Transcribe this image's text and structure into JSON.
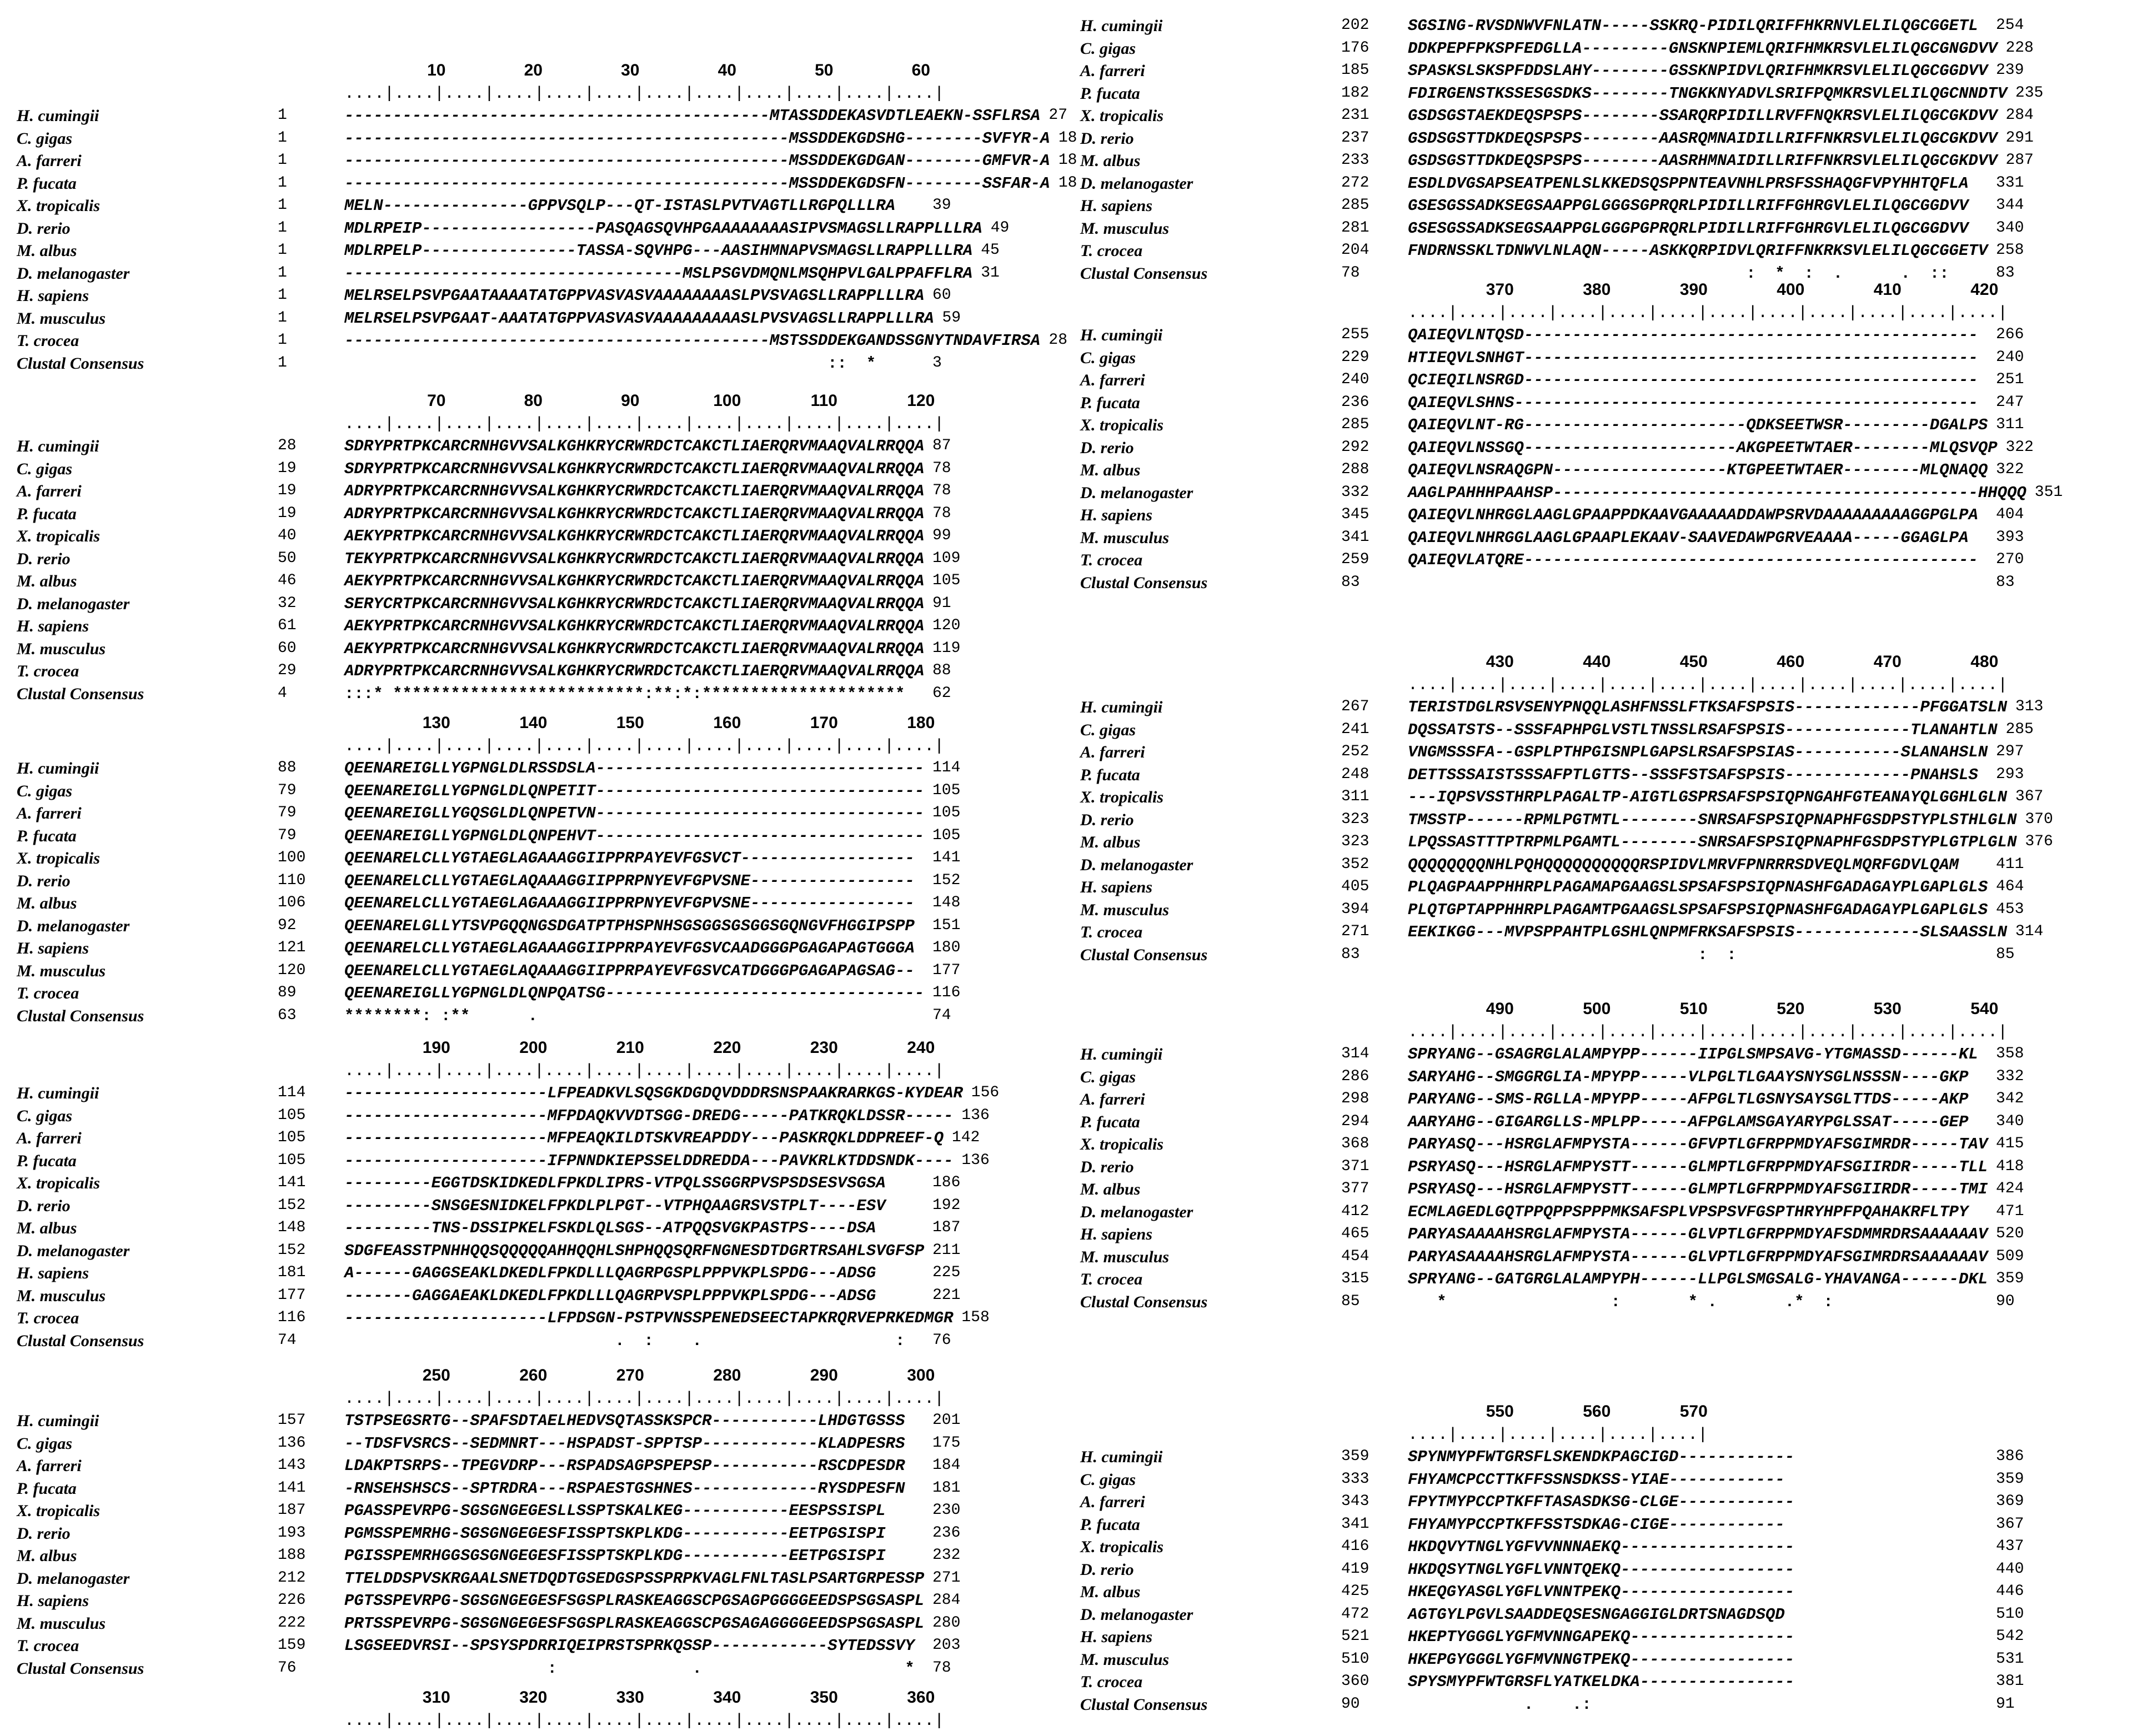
{
  "species": [
    "H. cumingii",
    "C. gigas",
    "A. farreri",
    "P. fucata",
    "X. tropicalis",
    "D. rerio",
    "M. albus",
    "D. melanogaster",
    "H. sapiens",
    "M. musculus",
    "T. crocea"
  ],
  "consensus_label": "Clustal Consensus",
  "blocks": [
    {
      "ruler": [
        "10",
        "20",
        "30",
        "40",
        "50",
        "60"
      ],
      "rows": [
        [
          "1",
          "--------------------------------------------MTASSDDEKASVDTLEAEKN-SSFLRSA",
          "27"
        ],
        [
          "1",
          "----------------------------------------------MSSDDEKGDSHG--------SVFYR-A",
          "18"
        ],
        [
          "1",
          "----------------------------------------------MSSDDEKGDGAN--------GMFVR-A",
          "18"
        ],
        [
          "1",
          "----------------------------------------------MSSDDEKGDSFN--------SSFAR-A",
          "18"
        ],
        [
          "1",
          "MELN---------------GPPVSQLP---QT-ISTASLPVTVAGTLLRGPQLLLRA",
          "39"
        ],
        [
          "1",
          "MDLRPEIP------------------PASQAGSQVHPGAAAAAAAASIPVSMAGSLLRAPPLLLRA",
          "49"
        ],
        [
          "1",
          "MDLRPELP----------------TASSA-SQVHPG---AASIHMNAPVSMAGSLLRAPPLLLRA",
          "45"
        ],
        [
          "1",
          "-----------------------------------MSLPSGVDMQNLMSQHPVLGALPPAFFLRA",
          "31"
        ],
        [
          "1",
          "MELRSELPSVPGAATAAAATATGPPVASVASVAAAAAAAASLPVSVAGSLLRAPPLLLRA",
          "60"
        ],
        [
          "1",
          "MELRSELPSVPGAAT-AAATATGPPVASVASVAAAAAAAAASLPVSVAGSLLRAPPLLLRA",
          "59"
        ],
        [
          "1",
          "--------------------------------------------MSTSSDDEKGANDSSGNYTNDAVFIRSA",
          "28"
        ]
      ],
      "consensus": [
        "1",
        "                                                  ::  *",
        "3"
      ]
    },
    {
      "ruler": [
        "70",
        "80",
        "90",
        "100",
        "110",
        "120"
      ],
      "rows": [
        [
          "28",
          "SDRYPRTPKCARCRNHGVVSALKGHKRYCRWRDCTCAKCTLIAERQRVMAAQVALRRQQA",
          "87"
        ],
        [
          "19",
          "SDRYPRTPKCARCRNHGVVSALKGHKRYCRWRDCTCAKCTLIAERQRVMAAQVALRRQQA",
          "78"
        ],
        [
          "19",
          "ADRYPRTPKCARCRNHGVVSALKGHKRYCRWRDCTCAKCTLIAERQRVMAAQVALRRQQA",
          "78"
        ],
        [
          "19",
          "ADRYPRTPKCARCRNHGVVSALKGHKRYCRWRDCTCAKCTLIAERQRVMAAQVALRRQQA",
          "78"
        ],
        [
          "40",
          "AEKYPRTPKCARCRNHGVVSALKGHKRYCRWRDCTCAKCTLIAERQRVMAAQVALRRQQA",
          "99"
        ],
        [
          "50",
          "TEKYPRTPKCARCRNHGVVSALKGHKRYCRWRDCTCAKCTLIAERQRVMAAQVALRRQQA",
          "109"
        ],
        [
          "46",
          "AEKYPRTPKCARCRNHGVVSALKGHKRYCRWRDCTCAKCTLIAERQRVMAAQVALRRQQA",
          "105"
        ],
        [
          "32",
          "SERYCRTPKCARCRNHGVVSALKGHKRYCRWRDCTCAKCTLIAERQRVMAAQVALRRQQA",
          "91"
        ],
        [
          "61",
          "AEKYPRTPKCARCRNHGVVSALKGHKRYCRWRDCTCAKCTLIAERQRVMAAQVALRRQQA",
          "120"
        ],
        [
          "60",
          "AEKYPRTPKCARCRNHGVVSALKGHKRYCRWRDCTCAKCTLIAERQRVMAAQVALRRQQA",
          "119"
        ],
        [
          "29",
          "ADRYPRTPKCARCRNHGVVSALKGHKRYCRWRDCTCAKCTLIAERQRVMAAQVALRRQQA",
          "88"
        ]
      ],
      "consensus": [
        "4",
        ":::* **************************:**:*:*********************",
        "62"
      ]
    },
    {
      "ruler": [
        "130",
        "140",
        "150",
        "160",
        "170",
        "180"
      ],
      "rows": [
        [
          "88",
          "QEENAREIGLLYGPNGLDLRSSDSLA----------------------------------",
          "114"
        ],
        [
          "79",
          "QEENAREIGLLYGPNGLDLQNPETIT----------------------------------",
          "105"
        ],
        [
          "79",
          "QEENAREIGLLYGQSGLDLQNPETVN----------------------------------",
          "105"
        ],
        [
          "79",
          "QEENAREIGLLYGPNGLDLQNPEHVT----------------------------------",
          "105"
        ],
        [
          "100",
          "QEENARELCLLYGTAEGLAGAAAGGIIPPRPAYEVFGSVCT------------------",
          "141"
        ],
        [
          "110",
          "QEENARELCLLYGTAEGLAQAAAGGIIPPRPNYEVFGPVSNE-----------------",
          "152"
        ],
        [
          "106",
          "QEENARELCLLYGTAEGLAGAAAGGIIPPRPNYEVFGPVSNE-----------------",
          "148"
        ],
        [
          "92",
          "QEENARELGLLYTSVPGQQNGSDGATPTPHSPNHSGSGGSGSGGSGQNGVFHGGIPSPP",
          "151"
        ],
        [
          "121",
          "QEENARELCLLYGTAEGLAGAAAGGIIPPRPAYEVFGSVCAADGGGPGAGAPAGTGGGA",
          "180"
        ],
        [
          "120",
          "QEENARELCLLYGTAEGLAQAAAGGIIPPRPAYEVFGSVCATDGGGPGAGAPAGSAG--",
          "177"
        ],
        [
          "89",
          "QEENAREIGLLYGPNGLDLQNPQATSG---------------------------------",
          "116"
        ]
      ],
      "consensus": [
        "63",
        "********: :**      .",
        "74"
      ]
    },
    {
      "ruler": [
        "190",
        "200",
        "210",
        "220",
        "230",
        "240"
      ],
      "rows": [
        [
          "114",
          "---------------------LFPEADKVLSQSGKDGDQVDDDRSNSPAAKRARKGS-KYDEAR",
          "156"
        ],
        [
          "105",
          "---------------------MFPDAQKVVDTSGG-DREDG-----PATKRQKLDSSR-----",
          "136"
        ],
        [
          "105",
          "---------------------MFPEAQKILDTSKVREAPDDY---PASKRQKLDDPREEF-Q",
          "142"
        ],
        [
          "105",
          "---------------------IFPNNDKIEPSSELDDREDDA---PAVKRLKTDDSNDK----",
          "136"
        ],
        [
          "141",
          "---------EGGTDSKIDKEDLFPKDLIPRS-VTPQLSSGGRPVSPSDSESVSGSA",
          "186"
        ],
        [
          "152",
          "---------SNSGESNIDKELFPKDLPLPGT--VTPHQAAGRSVSTPLT----ESV",
          "192"
        ],
        [
          "148",
          "---------TNS-DSSIPKELFSKDLQLSGS--ATPQQSVGKPASTPS----DSA",
          "187"
        ],
        [
          "152",
          "SDGFEASSTPNHHQQSQQQQQAHHQQHLSHPHQQSQRFNGNESDTDGRTRSAHLSVGFSP",
          "211"
        ],
        [
          "181",
          "A------GAGGSEAKLDKEDLFPKDLLLQAGRPGSPLPPPVKPLSPDG---ADSG",
          "225"
        ],
        [
          "177",
          "-------GAGGAEAKLDKEDLFPKDLLLQAGRPVSPLPPPVKPLSPDG---ADSG",
          "221"
        ],
        [
          "116",
          "---------------------LFPDSGN-PSTPVNSSPENEDSEECTAPKRQRVEPRKEDMGR",
          "158"
        ]
      ],
      "consensus": [
        "74",
        "                            .  :    .                    :",
        "76"
      ]
    },
    {
      "ruler": [
        "250",
        "260",
        "270",
        "280",
        "290",
        "300"
      ],
      "rows": [
        [
          "157",
          "TSTPSEGSRTG--SPAFSDTAELHEDVSQTASSKSPCR-----------LHDGTGSSS",
          "201"
        ],
        [
          "136",
          "--TDSFVSRCS--SEDMNRT---HSPADST-SPPTSP------------KLADPESRS",
          "175"
        ],
        [
          "143",
          "LDAKPTSRPS--TPEGVDRP---RSPADSAGPSPEPSP-----------RSCDPESDR",
          "184"
        ],
        [
          "141",
          "-RNSEHSHSCS--SPTRDRA---RSPAESTGSHNES-------------RYSDPESFN",
          "181"
        ],
        [
          "187",
          "PGASSPEVRPG-SGSGNGEGESLLSSPTSKALKEG-----------EESPSSISPL",
          "230"
        ],
        [
          "193",
          "PGMSSPEMRHG-SGSGNGEGESFISSPTSKPLKDG-----------EETPGSISPI",
          "236"
        ],
        [
          "188",
          "PGISSPEMRHGGSGSGNGEGESFISSPTSKPLKDG-----------EETPGSISPI",
          "232"
        ],
        [
          "212",
          "TTELDDSPVSKRGAALSNETDQDTGSEDGSPSSPRPKVAGLFNLTASLPSARTGRPESSP",
          "271"
        ],
        [
          "226",
          "PGTSSPEVRPG-SGSGNGEGESFSGSPLRASKEAGGSCPGSAGPGGGGEEDSPSGSASPL",
          "284"
        ],
        [
          "222",
          "PRTSSPEVRPG-SGSGNGEGESFSGSPLRASKEAGGSCPGSAGAGGGGEEDSPSGSASPL",
          "280"
        ],
        [
          "159",
          "LSGSEEDVRSI--SPSYSPDRRIQEIPRSTSPRKQSSP------------SYTEDSSVY",
          "203"
        ]
      ],
      "consensus": [
        "76",
        "                     :              .                     *",
        "78"
      ]
    },
    {
      "ruler": [
        "310",
        "320",
        "330",
        "340",
        "350",
        "360"
      ],
      "rows": [],
      "consensus": null
    },
    {
      "ruler": [],
      "rows": [
        [
          "202",
          "SGSING-RVSDNWVFNLATN-----SSKRQ-PIDILQRIFFHKRNVLELILQGCGGETL",
          "254"
        ],
        [
          "176",
          "DDKPEPFPKSPFEDGLLA---------GNSKNPIEMLQRIFHMKRSVLELILQGCGNGDVV",
          "228"
        ],
        [
          "185",
          "SPASKSLSKSPFDDSLAHY--------GSSKNPIDVLQRIFHMKRSVLELILQGCGGDVV",
          "239"
        ],
        [
          "182",
          "FDIRGENSTKSSESGSDKS--------TNGKKNYADVLSRIFPQMKRSVLELILQGCNNDTV",
          "235"
        ],
        [
          "231",
          "GSDSGSTAEKDEQSPSPS--------SSARQRPIDILLRVFFNQKRSVLELILQGCGKDVV",
          "284"
        ],
        [
          "237",
          "GSDSGSTTDKDEQSPSPS--------AASRQMNAIDILLRIFFNKRSVLELILQGCGKDVV",
          "291"
        ],
        [
          "233",
          "GSDSGSTTDKDEQSPSPS--------AASRHMNAIDILLRIFFNKRSVLELILQGCGKDVV",
          "287"
        ],
        [
          "272",
          "ESDLDVGSAPSEATPENLSLKKEDSQSPPNTEAVNHLPRSFSSHAQGFVPYHHTQFLA",
          "331"
        ],
        [
          "285",
          "GSESGSSADKSEGSAAPPGLGGGSGPRQRLPIDILLRIFFGHRGVLELILQGCGGDVV",
          "344"
        ],
        [
          "281",
          "GSESGSSADKSEGSAAPPGLGGGPGPRQRLPIDILLRIFFGHRGVLELILQGCGGDVV",
          "340"
        ],
        [
          "204",
          "FNDRNSSKLTDNWVLNLAQN-----ASKKQRPIDVLQRIFFNKRKSVLELILQGCGGETV",
          "258"
        ]
      ],
      "consensus": [
        "78",
        "                                   :  *  :  .      .  ::",
        "83"
      ]
    },
    {
      "ruler": [
        "370",
        "380",
        "390",
        "400",
        "410",
        "420"
      ],
      "rows": [
        [
          "255",
          "QAIEQVLNTQSD-----------------------------------------------",
          "266"
        ],
        [
          "229",
          "HTIEQVLSNHGT-----------------------------------------------",
          "240"
        ],
        [
          "240",
          "QCIEQILNSRGD-----------------------------------------------",
          "251"
        ],
        [
          "236",
          "QAIEQVLSHNS------------------------------------------------",
          "247"
        ],
        [
          "285",
          "QAIEQVLNT-RG-----------------------QDKSEETWSR---------DGALPS",
          "311"
        ],
        [
          "292",
          "QAIEQVLNSSGQ----------------------AKGPEETWTAER--------MLQSVQP",
          "322"
        ],
        [
          "288",
          "QAIEQVLNSRAQGPN------------------KTGPEETWTAER--------MLQNAQQ",
          "322"
        ],
        [
          "332",
          "AAGLPAHHHPAAHSP--------------------------------------------HHQQQ",
          "351"
        ],
        [
          "345",
          "QAIEQVLNHRGGLAAGLGPAAPPDKAAVGAAAAADDAWPSRVDAAAAAAAAAGGPGLPA",
          "404"
        ],
        [
          "341",
          "QAIEQVLNHRGGLAAGLGPAAPLEKAAV-SAAVEDAWPGRVEAAAA-----GGAGLPA",
          "393"
        ],
        [
          "259",
          "QAIEQVLATQRE-----------------------------------------------",
          "270"
        ]
      ],
      "consensus": [
        "83",
        "",
        "83"
      ]
    },
    {
      "ruler": [
        "430",
        "440",
        "450",
        "460",
        "470",
        "480"
      ],
      "rows": [
        [
          "267",
          "TERISTDGLRSVSENYPNQQLASHFNSSLFTKSAFSPSIS-------------PFGGATSLN",
          "313"
        ],
        [
          "241",
          "DQSSATSTS--SSSFAPHPGLVSTLTNSSLRSAFSPSIS-------------TLANAHTLN",
          "285"
        ],
        [
          "252",
          "VNGMSSSFA--GSPLPTHPGISNPLGAPSLRSAFSPSIAS-----------SLANAHSLN",
          "297"
        ],
        [
          "248",
          "DETTSSSAISTSSSAFPTLGTTS--SSSFSTSAFSPSIS-------------PNAHSLS",
          "293"
        ],
        [
          "311",
          "---IQPSVSSTHRPLPAGALTP-AIGTLGSPRSAFSPSIQPNGAHFGTEANAYQLGGHLGLN",
          "367"
        ],
        [
          "323",
          "TMSSTP------RPMLPGTMTL--------SNRSAFSPSIQPNAPHFGSDPSTYPLSTHLGLN",
          "370"
        ],
        [
          "323",
          "LPQSSASTTTPTRPMLPGAMTL--------SNRSAFSPSIQPNAPHFGSDPSTYPLGTPLGLN",
          "376"
        ],
        [
          "352",
          "QQQQQQQQNHLPQHQQQQQQQQQQRSPIDVLMRVFPNRRRSDVEQLMQRFGDVLQAM",
          "411"
        ],
        [
          "405",
          "PLQAGPAAPPHHRPLPAGAMAPGAAGSLSPSAFSPSIQPNASHFGADAGAYPLGAPLGLS",
          "464"
        ],
        [
          "394",
          "PLQTGPTAPPHHRPLPAGAMTPGAAGSLSPSAFSPSIQPNASHFGADAGAYPLGAPLGLS",
          "453"
        ],
        [
          "271",
          "EEKIKGG---MVPSPPAHTPLGSHLQNPMFRKSAFSPSIS-------------SLSAASSLN",
          "314"
        ]
      ],
      "consensus": [
        "83",
        "                              :  :",
        "85"
      ]
    },
    {
      "ruler": [
        "490",
        "500",
        "510",
        "520",
        "530",
        "540"
      ],
      "rows": [
        [
          "314",
          "SPRYANG--GSAGRGLALAMPYPP------IIPGLSMPSAVG-YTGMASSD------KL",
          "358"
        ],
        [
          "286",
          "SARYAHG--SMGGRGLIA-MPYPP-----VLPGLTLGAAYSNYSGLNSSSN----GKP",
          "332"
        ],
        [
          "298",
          "PARYANG--SMS-RGLLA-MPYPP-----AFPGLTLGSNYSAYSGLTTDS-----AKP",
          "342"
        ],
        [
          "294",
          "AARYAHG--GIGARGLLS-MPLPP-----AFPGLAMSGAYARYPGLSSAT-----GEP",
          "340"
        ],
        [
          "368",
          "PARYASQ---HSRGLAFMPYSTA------GFVPTLGFRPPMDYAFSGIMRDR-----TAV",
          "415"
        ],
        [
          "371",
          "PSRYASQ---HSRGLAFMPYSTT------GLMPTLGFRPPMDYAFSGIIRDR-----TLL",
          "418"
        ],
        [
          "377",
          "PSRYASQ---HSRGLAFMPYSTT------GLMPTLGFRPPMDYAFSGIIRDR-----TMI",
          "424"
        ],
        [
          "412",
          "ECMLAGEDLGQTPPQPPSPPPMKSAFSPLVPSPSVFGSPTHRYHPFPQAHAKRFLTPY",
          "471"
        ],
        [
          "465",
          "PARYASAAAAHSRGLAFMPYSTA------GLVPTLGFRPPMDYAFSDMMRDRSAAAAAAV",
          "520"
        ],
        [
          "454",
          "PARYASAAAAHSRGLAFMPYSTA------GLVPTLGFRPPMDYAFSGIMRDRSAAAAAAV",
          "509"
        ],
        [
          "315",
          "SPRYANG--GATGRGLALAMPYPH------LLPGLSMGSALG-YHAVANGA------DKL",
          "359"
        ]
      ],
      "consensus": [
        "85",
        "   *                 :       * .       .*  :",
        "90"
      ]
    },
    {
      "ruler": [
        "550",
        "560",
        "570"
      ],
      "rows": [
        [
          "359",
          "SPYNMYPFWTGRSFLSKENDKPAGCIGD------------",
          "386"
        ],
        [
          "333",
          "FHYAMCPCCTTKFFSSNSDKSS-YIAE------------",
          "359"
        ],
        [
          "343",
          "FPYTMYPCCPTKFFTASASDKSG-CLGE------------",
          "369"
        ],
        [
          "341",
          "FHYAMYPCCPTKFFSSTSDKAG-CIGE------------",
          "367"
        ],
        [
          "416",
          "HKDQVYTNGLYGFVVNNNAEKQ------------------",
          "437"
        ],
        [
          "419",
          "HKDQSYTNGLYGFLVNNTQEKQ------------------",
          "440"
        ],
        [
          "425",
          "HKEQGYASGLYGFLVNNTPEKQ------------------",
          "446"
        ],
        [
          "472",
          "AGTGYLPGVLSAADDEQSESNGAGGIGLDRTSNAGDSQD",
          "510"
        ],
        [
          "521",
          "HKEPTYGGGLYGFMVNNGAPEKQ-----------------",
          "542"
        ],
        [
          "510",
          "HKEPGYGGGLYGFMVNNGTPEKQ-----------------",
          "531"
        ],
        [
          "360",
          "SPYSMYPFWTGRSFLYATKELDKA----------------",
          "381"
        ]
      ],
      "consensus": [
        "90",
        "            .    .:",
        "91"
      ]
    }
  ]
}
